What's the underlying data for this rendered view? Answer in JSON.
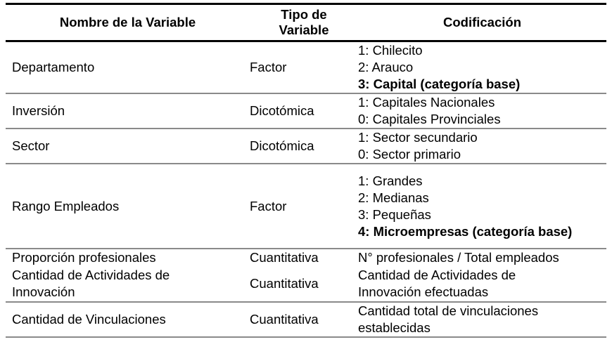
{
  "headers": [
    "Nombre de la Variable",
    "Tipo de Variable",
    "Codificación"
  ],
  "rows": [
    {
      "name": "Departamento",
      "type": "Factor",
      "coding": [
        {
          "text": "1: Chilecito",
          "bold": false
        },
        {
          "text": "2: Arauco",
          "bold": false
        },
        {
          "text": "3: Capital (categoría base)",
          "bold": true
        }
      ]
    },
    {
      "name": "Inversión",
      "type": "Dicotómica",
      "coding": [
        {
          "text": "1: Capitales Nacionales",
          "bold": false
        },
        {
          "text": "0: Capitales Provinciales",
          "bold": false
        }
      ]
    },
    {
      "name": "Sector",
      "type": "Dicotómica",
      "coding": [
        {
          "text": "1: Sector secundario",
          "bold": false
        },
        {
          "text": "0: Sector primario",
          "bold": false
        }
      ]
    },
    {
      "name": "Rango Empleados",
      "type": "Factor",
      "coding": [
        {
          "text": "1: Grandes",
          "bold": false
        },
        {
          "text": "2: Medianas",
          "bold": false
        },
        {
          "text": "3: Pequeñas",
          "bold": false
        },
        {
          "text": "4: Microempresas (categoría base)",
          "bold": true
        }
      ]
    },
    {
      "name": "Proporción profesionales",
      "type": "Cuantitativa",
      "coding": [
        {
          "text": "N° profesionales / Total empleados",
          "bold": false
        }
      ]
    },
    {
      "name": "Cantidad de Actividades de Innovación",
      "type": "Cuantitativa",
      "coding": [
        {
          "text": "Cantidad de Actividades de Innovación efectuadas",
          "bold": false
        }
      ]
    },
    {
      "name": "Cantidad de Vinculaciones",
      "type": "Cuantitativa",
      "coding": [
        {
          "text": "Cantidad total de vinculaciones establecidas",
          "bold": false
        }
      ]
    }
  ]
}
